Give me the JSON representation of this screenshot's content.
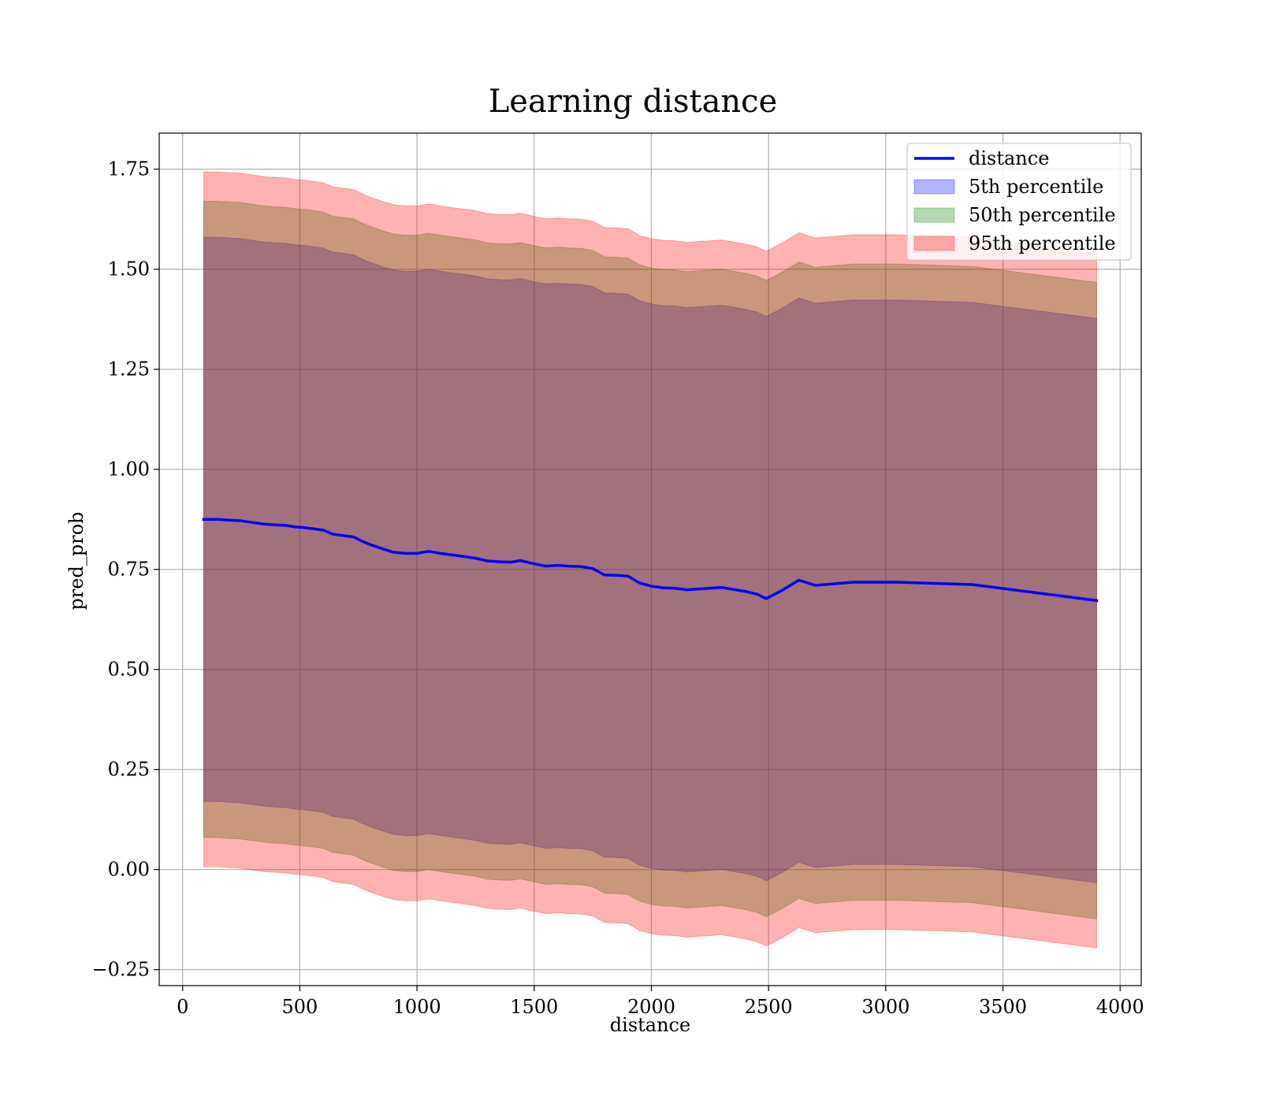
{
  "chart_data": {
    "type": "area",
    "title": "Learning distance",
    "xlabel": "distance",
    "ylabel": "pred_prob",
    "xlim": [
      -100,
      4090
    ],
    "ylim": [
      -0.29,
      1.84
    ],
    "x_ticks": [
      0,
      500,
      1000,
      1500,
      2000,
      2500,
      3000,
      3500,
      4000
    ],
    "y_ticks": [
      -0.25,
      0.0,
      0.25,
      0.5,
      0.75,
      1.0,
      1.25,
      1.5,
      1.75
    ],
    "x_tick_labels": [
      "0",
      "500",
      "1000",
      "1500",
      "2000",
      "2500",
      "3000",
      "3500",
      "4000"
    ],
    "y_tick_labels": [
      "−0.25",
      "0.00",
      "0.25",
      "0.50",
      "0.75",
      "1.00",
      "1.25",
      "1.50",
      "1.75"
    ],
    "grid": true,
    "legend_position": "top-right",
    "x": [
      90,
      150,
      200,
      240,
      290,
      350,
      400,
      440,
      480,
      510,
      550,
      600,
      640,
      690,
      730,
      760,
      800,
      860,
      900,
      950,
      1000,
      1050,
      1100,
      1150,
      1200,
      1250,
      1300,
      1350,
      1400,
      1440,
      1500,
      1550,
      1600,
      1650,
      1700,
      1750,
      1800,
      1850,
      1900,
      1950,
      2000,
      2050,
      2100,
      2150,
      2200,
      2250,
      2300,
      2350,
      2400,
      2450,
      2490,
      2550,
      2630,
      2700,
      2860,
      3050,
      3370,
      3900
    ],
    "series": [
      {
        "name": "distance",
        "kind": "line",
        "color": "#0000ff",
        "values": [
          0.875,
          0.875,
          0.873,
          0.872,
          0.868,
          0.863,
          0.861,
          0.86,
          0.856,
          0.855,
          0.852,
          0.848,
          0.838,
          0.834,
          0.831,
          0.822,
          0.812,
          0.8,
          0.793,
          0.79,
          0.79,
          0.795,
          0.79,
          0.786,
          0.782,
          0.778,
          0.771,
          0.769,
          0.768,
          0.772,
          0.764,
          0.758,
          0.76,
          0.758,
          0.757,
          0.752,
          0.736,
          0.735,
          0.733,
          0.716,
          0.708,
          0.704,
          0.703,
          0.699,
          0.701,
          0.703,
          0.705,
          0.7,
          0.695,
          0.688,
          0.677,
          0.695,
          0.723,
          0.71,
          0.718,
          0.718,
          0.712,
          0.672
        ]
      },
      {
        "name": "5th percentile",
        "kind": "band",
        "color": "#0000ff",
        "lower_offset": -0.705,
        "upper_offset": 0.705
      },
      {
        "name": "50th percentile",
        "kind": "band",
        "color": "#008000",
        "lower_offset": -0.795,
        "upper_offset": 0.795
      },
      {
        "name": "95th percentile",
        "kind": "band",
        "color": "#ff0000",
        "lower_offset": -0.868,
        "upper_offset": 0.868
      }
    ]
  }
}
